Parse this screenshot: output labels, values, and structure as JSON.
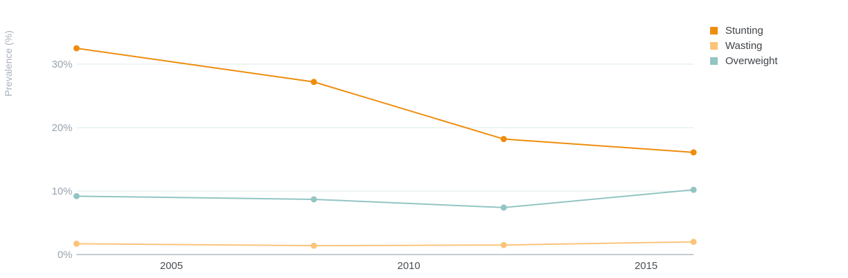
{
  "chart_data": {
    "type": "line",
    "ylabel": "Prevalence (%)",
    "xlabel": "",
    "x_ticks": [
      "2005",
      "2010",
      "2015"
    ],
    "y_ticks": [
      "0%",
      "10%",
      "20%",
      "30%"
    ],
    "xlim": [
      2003,
      2016
    ],
    "ylim": [
      0,
      35
    ],
    "grid": true,
    "legend_position": "top-right",
    "x": [
      2003,
      2008,
      2012,
      2016
    ],
    "series": [
      {
        "name": "Stunting",
        "color": "#ee8c0b",
        "values": [
          32.5,
          27.2,
          18.2,
          16.1
        ]
      },
      {
        "name": "Wasting",
        "color": "#fbc479",
        "values": [
          1.7,
          1.4,
          1.5,
          2.0
        ]
      },
      {
        "name": "Overweight",
        "color": "#92c5c3",
        "values": [
          9.2,
          8.7,
          7.4,
          10.2
        ]
      }
    ]
  }
}
